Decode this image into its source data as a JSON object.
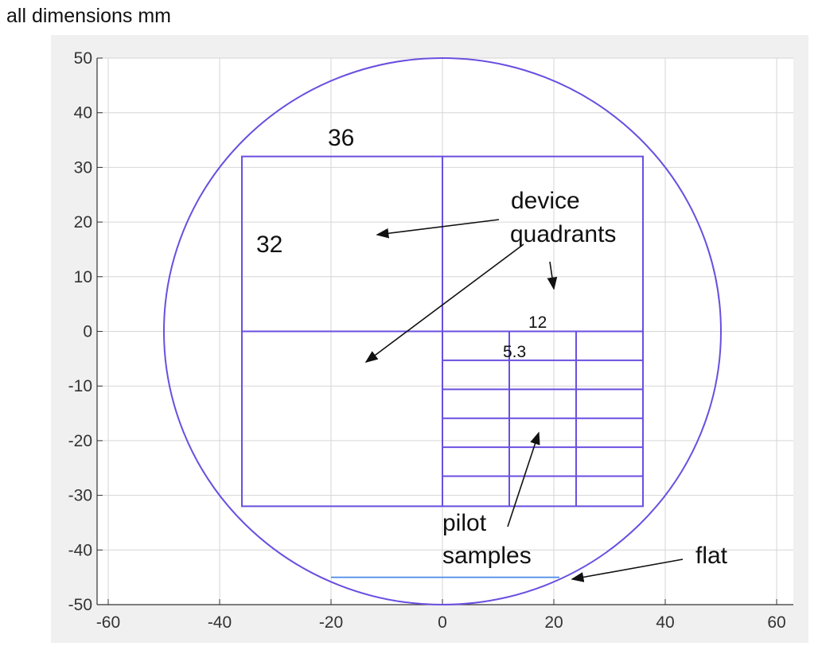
{
  "caption": "all dimensions mm",
  "axes": {
    "xlim": [
      -62,
      63
    ],
    "ylim": [
      -50,
      50
    ],
    "xticks": [
      -60,
      -40,
      -20,
      0,
      20,
      40,
      60
    ],
    "yticks": [
      50,
      40,
      30,
      20,
      10,
      0,
      -10,
      -20,
      -30,
      -40,
      -50
    ],
    "grid": true
  },
  "colors": {
    "outline": "#6a4fe0",
    "flat": "#4a8ae8",
    "grid": "#d6d6d6",
    "panel": "#f0f0f0"
  },
  "wafer": {
    "center": [
      0,
      0
    ],
    "radius": 50,
    "flat_y": -45,
    "flat_x": [
      -20,
      21
    ]
  },
  "device": {
    "x": [
      -36,
      36
    ],
    "y": [
      -32,
      32
    ]
  },
  "pilot": {
    "x": [
      0,
      36
    ],
    "y": [
      -32,
      0
    ],
    "columns": [
      12,
      24
    ],
    "rows": [
      -5.3,
      -10.6,
      -15.9,
      -21.2,
      -26.5
    ]
  },
  "labels": {
    "width_36": "36",
    "height_32": "32",
    "device_quadrants_1": "device",
    "device_quadrants_2": "quadrants",
    "pilot_width_12": "12",
    "pilot_height_5_3": "5.3",
    "pilot_samples_1": "pilot",
    "pilot_samples_2": "samples",
    "flat": "flat"
  }
}
